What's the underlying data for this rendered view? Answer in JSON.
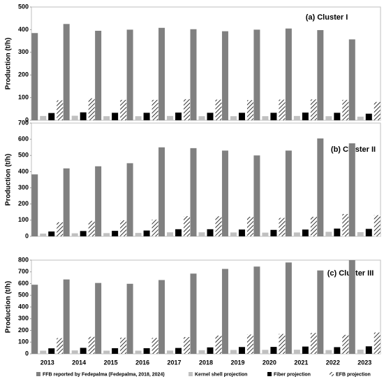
{
  "chart_data": [
    {
      "type": "bar",
      "annotation": "(a) Cluster I",
      "ylabel": "Production (t/h)",
      "ylim": [
        0,
        500
      ],
      "yticks": [
        0,
        100,
        200,
        300,
        400,
        500
      ],
      "series": [
        {
          "name": "FFB reported by Fedepalma (Fedepalma, 2018, 2024)",
          "color": "#808080",
          "values": [
            385,
            425,
            395,
            400,
            408,
            402,
            393,
            400,
            405,
            398,
            357
          ]
        },
        {
          "name": "Kernel shell projection",
          "color": "#c0c0c0",
          "values": [
            19,
            20,
            18,
            18,
            19,
            18,
            18,
            18,
            19,
            18,
            16
          ]
        },
        {
          "name": "Fiber projection",
          "color": "#000000",
          "values": [
            32,
            35,
            33,
            33,
            34,
            33,
            33,
            33,
            34,
            33,
            29
          ]
        },
        {
          "name": "EFB projection",
          "color": "#000000",
          "hatch": true,
          "values": [
            88,
            97,
            90,
            90,
            93,
            91,
            89,
            91,
            92,
            90,
            81
          ]
        }
      ]
    },
    {
      "type": "bar",
      "annotation": "(b) Cluster II",
      "ylabel": "Production (t/h)",
      "ylim": [
        0,
        700
      ],
      "yticks": [
        0,
        100,
        200,
        300,
        400,
        500,
        600,
        700
      ],
      "series": [
        {
          "color": "#808080",
          "values": [
            383,
            420,
            433,
            452,
            550,
            545,
            530,
            500,
            530,
            605,
            575
          ]
        },
        {
          "color": "#c0c0c0",
          "values": [
            17,
            19,
            20,
            21,
            25,
            25,
            24,
            23,
            24,
            28,
            26
          ]
        },
        {
          "color": "#000000",
          "values": [
            30,
            33,
            34,
            36,
            44,
            44,
            42,
            40,
            42,
            48,
            46
          ]
        },
        {
          "color": "#000000",
          "hatch": true,
          "values": [
            87,
            96,
            99,
            103,
            125,
            124,
            121,
            114,
            121,
            138,
            131
          ]
        }
      ]
    },
    {
      "type": "bar",
      "annotation": "(c) Cluster III",
      "ylabel": "Production (t/h)",
      "ylim": [
        0,
        800
      ],
      "yticks": [
        0,
        100,
        200,
        300,
        400,
        500,
        600,
        700,
        800
      ],
      "categories": [
        "2013",
        "2014",
        "2015",
        "2016",
        "2017",
        "2018",
        "2019",
        "2020",
        "2021",
        "2022",
        "2023"
      ],
      "series": [
        {
          "color": "#808080",
          "values": [
            590,
            635,
            605,
            598,
            630,
            685,
            725,
            745,
            780,
            712,
            800
          ]
        },
        {
          "color": "#c0c0c0",
          "values": [
            27,
            29,
            27,
            27,
            28,
            31,
            33,
            34,
            35,
            32,
            36
          ]
        },
        {
          "color": "#000000",
          "values": [
            47,
            51,
            48,
            48,
            50,
            55,
            58,
            59,
            62,
            57,
            64
          ]
        },
        {
          "color": "#000000",
          "hatch": true,
          "values": [
            134,
            145,
            138,
            136,
            143,
            156,
            165,
            170,
            178,
            162,
            182
          ]
        }
      ]
    }
  ]
}
